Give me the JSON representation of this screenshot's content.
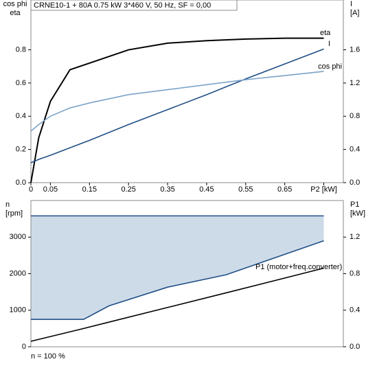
{
  "chart_data": [
    {
      "type": "line",
      "title": "CRNE10-1 + 80A   0.75 kW   3*460 V, 50 Hz, SF = 0,00",
      "ylabel": [
        "cos phi",
        "eta"
      ],
      "y2label": [
        "I",
        "[A]"
      ],
      "x": [
        0,
        0.02,
        0.05,
        0.1,
        0.15,
        0.25,
        0.35,
        0.45,
        0.55,
        0.65,
        0.75
      ],
      "xlim": [
        0,
        0.8
      ],
      "xticks": [
        0,
        0.05,
        0.15,
        0.25,
        0.35,
        0.45,
        0.55,
        0.65,
        {
          "value": 0.75,
          "label": "P2 [kW]"
        }
      ],
      "ylim": [
        0,
        1.1
      ],
      "yticks": [
        {
          "value": 0,
          "label": "0.0"
        },
        0.2,
        0.4,
        0.6,
        0.8
      ],
      "y2lim": [
        0,
        2.2
      ],
      "y2ticks": [
        {
          "value": 0,
          "label": "0.0"
        },
        0.4,
        0.8,
        1.2,
        1.6
      ],
      "grid": false,
      "series": [
        {
          "name": "eta",
          "color": "#000000",
          "values": [
            0,
            0.27,
            0.49,
            0.68,
            0.72,
            0.8,
            0.84,
            0.855,
            0.865,
            0.87,
            0.87
          ]
        },
        {
          "name": "I",
          "color": "#1f4e86",
          "axis": "y2",
          "values": [
            0.24,
            0.28,
            0.33,
            0.42,
            0.51,
            0.7,
            0.88,
            1.06,
            1.25,
            1.43,
            1.61
          ]
        },
        {
          "name": "cos phi",
          "color": "#7ba3c8",
          "values": [
            0.31,
            0.35,
            0.4,
            0.45,
            0.48,
            0.53,
            0.56,
            0.59,
            0.62,
            0.645,
            0.67
          ]
        }
      ]
    },
    {
      "type": "line",
      "ylabel": [
        "n",
        "[rpm]"
      ],
      "y2label": [
        "P1",
        "[kW]"
      ],
      "annotation": "n = 100 %",
      "x": [
        0,
        0.135,
        0.2,
        0.35,
        0.5,
        0.75
      ],
      "xlim": [
        0,
        0.8
      ],
      "ylim": [
        0,
        4000
      ],
      "yticks": [
        0,
        1000,
        2000,
        3000
      ],
      "y2lim": [
        0,
        1.6
      ],
      "y2ticks": [
        {
          "value": 0,
          "label": "0.0"
        },
        0.4,
        0.8,
        1.2
      ],
      "grid": false,
      "fill_between": [
        0,
        1
      ],
      "fill_color": "#cddbe8",
      "series": [
        {
          "color": "#1f4e86",
          "values": [
            3580,
            3580,
            3580,
            3580,
            3580,
            3580
          ]
        },
        {
          "color": "#1f4e86",
          "values": [
            750,
            750,
            1120,
            1630,
            1970,
            2900
          ]
        },
        {
          "name": "P1 (motor+freq.converter)",
          "color": "#000000",
          "axis": "y2",
          "values": [
            0.06,
            0.2,
            0.27,
            0.43,
            0.59,
            0.86
          ]
        }
      ]
    }
  ]
}
